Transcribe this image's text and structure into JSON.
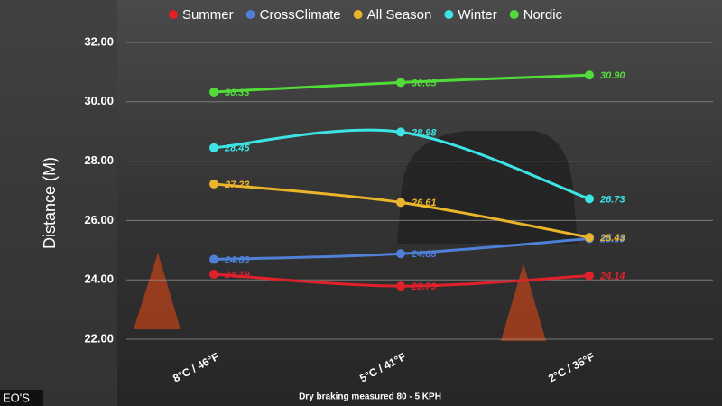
{
  "chart_data": {
    "type": "line",
    "y_label": "Distance (M)",
    "subtitle": "Dry braking measured 80 - 5 KPH",
    "watermark": "EO'S",
    "categories": [
      "8°C / 46°F",
      "5°C / 41°F",
      "2°C / 35°F"
    ],
    "ylim": [
      22,
      32
    ],
    "yticks": [
      {
        "value": 22,
        "label": "22.00"
      },
      {
        "value": 24,
        "label": "24.00"
      },
      {
        "value": 26,
        "label": "26.00"
      },
      {
        "value": 28,
        "label": "28.00"
      },
      {
        "value": 30,
        "label": "30.00"
      },
      {
        "value": 32,
        "label": "32.00"
      }
    ],
    "grid": true,
    "legend": "top",
    "series": [
      {
        "name": "Summer",
        "color": "#e2202c",
        "values": [
          24.19,
          23.79,
          24.14
        ],
        "value_labels": [
          "24.19",
          "23.79",
          "24.14"
        ]
      },
      {
        "name": "CrossClimate",
        "color": "#4f7fd6",
        "values": [
          24.69,
          24.88,
          25.39
        ],
        "value_labels": [
          "24.69",
          "24.88",
          "25.39"
        ]
      },
      {
        "name": "All Season",
        "color": "#eab42c",
        "values": [
          27.23,
          26.61,
          25.43
        ],
        "value_labels": [
          "27.23",
          "26.61",
          "25.43"
        ]
      },
      {
        "name": "Winter",
        "color": "#3ee4e4",
        "values": [
          28.45,
          28.98,
          26.73
        ],
        "value_labels": [
          "28.45",
          "28.98",
          "26.73"
        ]
      },
      {
        "name": "Nordic",
        "color": "#52dc3a",
        "values": [
          30.33,
          30.65,
          30.9
        ],
        "value_labels": [
          "30.33",
          "30.65",
          "30.90"
        ]
      }
    ]
  }
}
